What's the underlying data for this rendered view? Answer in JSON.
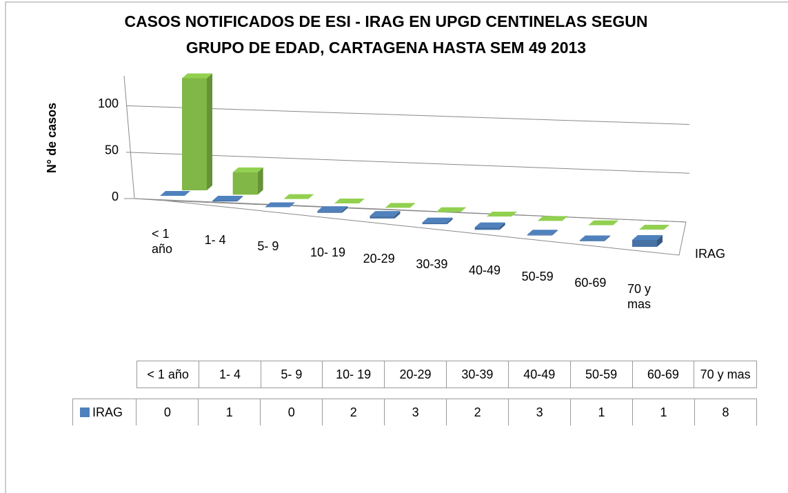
{
  "chart_data": {
    "type": "bar3d",
    "title": "CASOS NOTIFICADOS DE ESI - IRAG EN UPGD CENTINELAS SEGUN GRUPO DE EDAD, CARTAGENA HASTA SEM 49 2013",
    "y_label": "N° de casos",
    "categories": [
      "< 1 año",
      "1- 4",
      "5- 9",
      "10- 19",
      "20-29",
      "30-39",
      "40-49",
      "50-59",
      "60-69",
      "70 y mas"
    ],
    "series": [
      {
        "color": "#92d050",
        "values": [
          125,
          25,
          0,
          0,
          0,
          0,
          0,
          0,
          0,
          0
        ]
      },
      {
        "name": "IRAG",
        "color": "#4f81bd",
        "values": [
          0,
          1,
          0,
          2,
          3,
          2,
          3,
          1,
          1,
          8
        ]
      }
    ],
    "ylim": [
      0,
      130
    ],
    "yticks": [
      0,
      50,
      100
    ],
    "grid": true
  }
}
